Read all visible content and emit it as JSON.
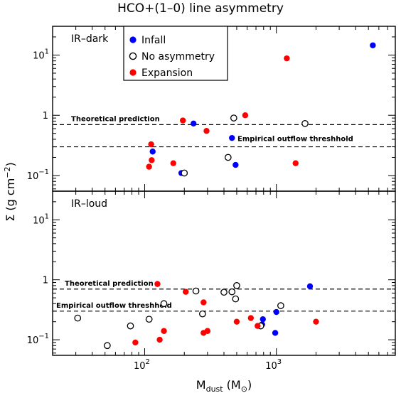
{
  "chart_data": {
    "type": "scatter",
    "title": "HCO+(1–0) line asymmetry",
    "xlabel": {
      "main": "M",
      "sub": "dust",
      "unit_open": " (M",
      "unit_sub": "⊙",
      "unit_close": ")"
    },
    "ylabel": {
      "main": "Σ (g cm",
      "sup": "−2",
      "close": ")"
    },
    "x_scale": "log",
    "y_scale": "log",
    "xlim": [
      20,
      8000
    ],
    "ylim": [
      0.055,
      30
    ],
    "x_ticks": [
      {
        "value": 100,
        "base": "10",
        "exp": "2"
      },
      {
        "value": 1000,
        "base": "10",
        "exp": "3"
      }
    ],
    "y_ticks": [
      {
        "value": 0.1,
        "label": "10",
        "exp": "−1"
      },
      {
        "value": 1,
        "label": "1",
        "exp": ""
      },
      {
        "value": 10,
        "label": "10",
        "exp": "1"
      }
    ],
    "legend": {
      "placement": "top-left of upper panel",
      "entries": [
        {
          "label": "Infall",
          "color": "#0000ff",
          "style": "filled"
        },
        {
          "label": "No asymmetry",
          "color": "#000000",
          "style": "open"
        },
        {
          "label": "Expansion",
          "color": "#ff0000",
          "style": "filled"
        }
      ]
    },
    "panels": [
      {
        "label": "IR–dark",
        "reference_lines": [
          {
            "name": "Theoretical prediction",
            "y": 0.7
          },
          {
            "name": "Empirical outflow threshhold",
            "y": 0.3
          }
        ],
        "series": [
          {
            "name": "Infall",
            "points": [
              [
                5400,
                14.5
              ],
              [
                235,
                0.73
              ],
              [
                460,
                0.42
              ],
              [
                115,
                0.25
              ],
              [
                190,
                0.11
              ],
              [
                490,
                0.15
              ]
            ]
          },
          {
            "name": "No asymmetry",
            "points": [
              [
                475,
                0.9
              ],
              [
                1650,
                0.73
              ],
              [
                430,
                0.2
              ],
              [
                200,
                0.11
              ]
            ]
          },
          {
            "name": "Expansion",
            "points": [
              [
                1200,
                8.8
              ],
              [
                580,
                1.0
              ],
              [
                195,
                0.82
              ],
              [
                295,
                0.55
              ],
              [
                112,
                0.33
              ],
              [
                113,
                0.18
              ],
              [
                165,
                0.16
              ],
              [
                108,
                0.14
              ],
              [
                1400,
                0.16
              ]
            ]
          }
        ]
      },
      {
        "label": "IR–loud",
        "reference_lines": [
          {
            "name": "Theoretical prediction",
            "y": 0.7
          },
          {
            "name": "Empirical outflow threshhold",
            "y": 0.3
          }
        ],
        "series": [
          {
            "name": "Infall",
            "points": [
              [
                1800,
                0.78
              ],
              [
                1000,
                0.29
              ],
              [
                790,
                0.22
              ],
              [
                780,
                0.18
              ],
              [
                980,
                0.13
              ]
            ]
          },
          {
            "name": "No asymmetry",
            "points": [
              [
                245,
                0.65
              ],
              [
                400,
                0.62
              ],
              [
                460,
                0.63
              ],
              [
                500,
                0.8
              ],
              [
                490,
                0.48
              ],
              [
                140,
                0.4
              ],
              [
                275,
                0.27
              ],
              [
                1080,
                0.37
              ],
              [
                31,
                0.23
              ],
              [
                108,
                0.22
              ],
              [
                78,
                0.17
              ],
              [
                52,
                0.08
              ],
              [
                760,
                0.17
              ]
            ]
          },
          {
            "name": "Expansion",
            "points": [
              [
                125,
                0.85
              ],
              [
                205,
                0.63
              ],
              [
                280,
                0.42
              ],
              [
                640,
                0.23
              ],
              [
                500,
                0.2
              ],
              [
                2000,
                0.2
              ],
              [
                720,
                0.17
              ],
              [
                140,
                0.14
              ],
              [
                300,
                0.14
              ],
              [
                280,
                0.13
              ],
              [
                130,
                0.1
              ],
              [
                85,
                0.09
              ]
            ]
          }
        ]
      }
    ]
  }
}
